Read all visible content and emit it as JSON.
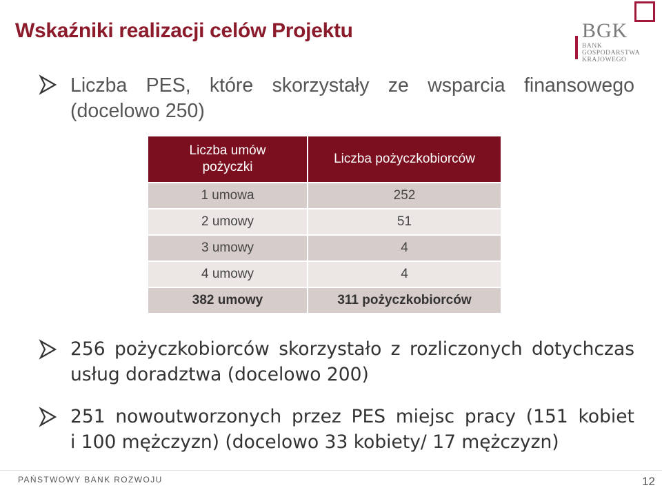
{
  "title": "Wskaźniki realizacji celów Projektu",
  "logo": {
    "name": "BGK",
    "line1": "BANK GOSPODARSTWA",
    "line2": "KRAJOWEGO",
    "accent": "#a3183a"
  },
  "bullets": [
    {
      "line1_words": [
        "Liczba",
        "PES,",
        "które",
        "skorzystały",
        "ze",
        "wsparcia",
        "finansowego"
      ],
      "line2": "(docelowo 250)"
    },
    {
      "line1_words": [
        "256",
        "pożyczkobiorców",
        "skorzystało",
        "z",
        "rozliczonych",
        "dotychczas"
      ],
      "line2": "usług doradztwa (docelowo 200)"
    },
    {
      "line1_words": [
        "251",
        "nowoutworzonych",
        "przez",
        "PES",
        "miejsc",
        "pracy",
        "(151",
        "kobiet"
      ],
      "line2": "i 100 mężczyzn) (docelowo 33 kobiety/ 17 mężczyzn)"
    }
  ],
  "table": {
    "headers": [
      "Liczba umów pożyczki",
      "Liczba pożyczkobiorców"
    ],
    "header_line1": "Liczba umów",
    "header_line2": "pożyczki",
    "rows": [
      [
        "1 umowa",
        "252"
      ],
      [
        "2 umowy",
        "51"
      ],
      [
        "3 umowy",
        "4"
      ],
      [
        "4 umowy",
        "4"
      ]
    ],
    "total": [
      "382 umowy",
      "311 pożyczkobiorców"
    ],
    "header_color": "#7b0f1f",
    "row_colors": [
      "#d6ccc9",
      "#ece7e5"
    ]
  },
  "footer": {
    "org": "PAŃSTWOWY BANK ROZWOJU",
    "page": "12"
  }
}
